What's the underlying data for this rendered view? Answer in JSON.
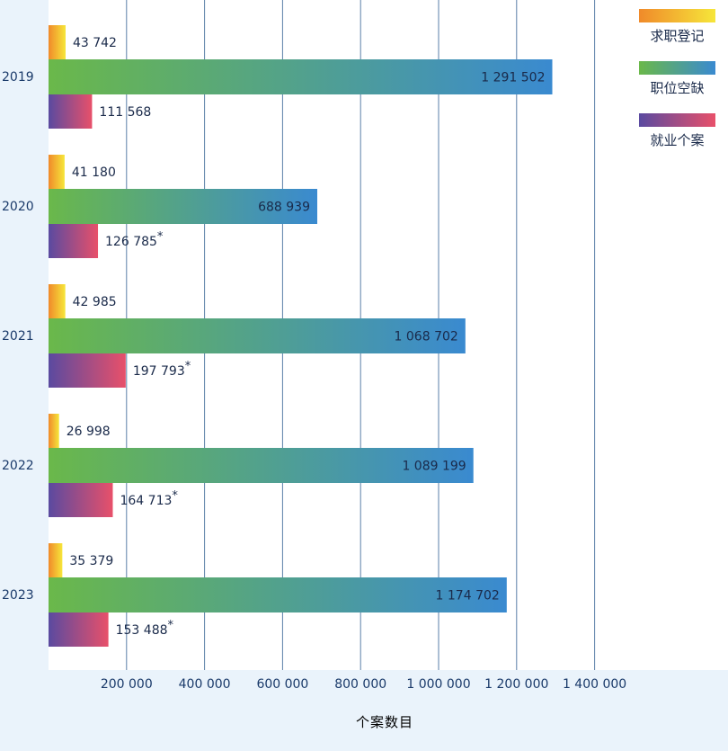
{
  "chart_data": {
    "type": "bar",
    "orientation": "horizontal",
    "categories": [
      "2019",
      "2020",
      "2021",
      "2022",
      "2023"
    ],
    "series": [
      {
        "name": "求职登记",
        "values": [
          43742,
          41180,
          42985,
          26998,
          35379
        ],
        "labels": [
          "43 742",
          "41 180",
          "42 985",
          "26 998",
          "35 379"
        ],
        "gradient": [
          "#f08a2a",
          "#f6e63a"
        ]
      },
      {
        "name": "职位空缺",
        "values": [
          1291502,
          688939,
          1068702,
          1089199,
          1174702
        ],
        "labels": [
          "1 291 502",
          "688 939",
          "1 068 702",
          "1 089 199",
          "1 174 702"
        ],
        "gradient": [
          "#6ab84a",
          "#3a8ad0"
        ]
      },
      {
        "name": "就业个案",
        "values": [
          111568,
          126785,
          197793,
          164713,
          153488
        ],
        "labels": [
          "111 568",
          "126 785",
          "197 793",
          "164 713",
          "153 488"
        ],
        "asterisk": [
          false,
          true,
          true,
          true,
          true
        ],
        "gradient": [
          "#5a4aa0",
          "#e8506a"
        ]
      }
    ],
    "xlim": [
      0,
      1400000
    ],
    "x_ticks": [
      200000,
      400000,
      600000,
      800000,
      1000000,
      1200000,
      1400000
    ],
    "x_tick_labels": [
      "200 000",
      "400 000",
      "600 000",
      "800 000",
      "1 000 000",
      "1 200 000",
      "1 400 000"
    ],
    "xlabel": "个案数目",
    "asterisk_mark": "*",
    "grid": true,
    "legend_position": "top-right",
    "colors": {
      "background": "#eaf3fb",
      "plot_background": "#ffffff",
      "gridline": "#5a7fa8",
      "text": "#1a2a4a",
      "year_text": "#1a3a6a"
    }
  }
}
